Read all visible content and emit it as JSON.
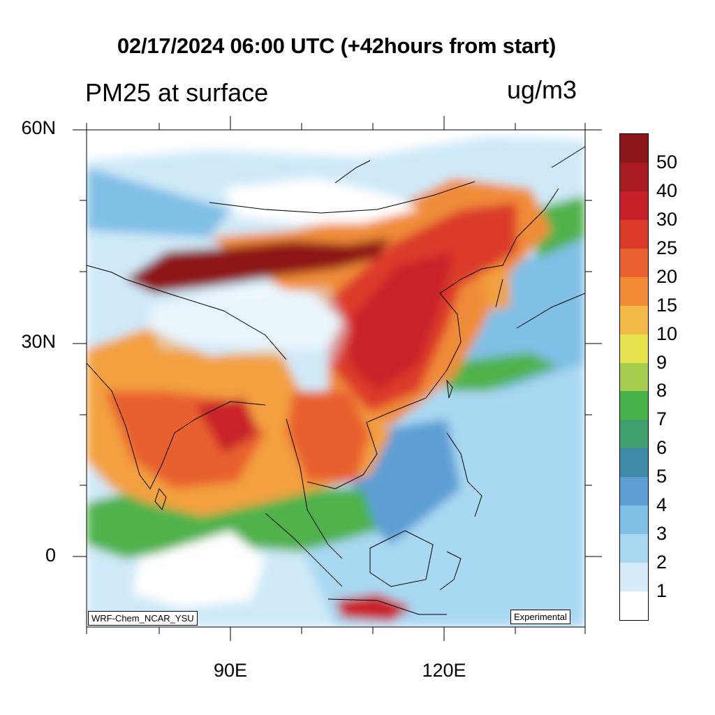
{
  "title": "02/17/2024 06:00 UTC (+42hours from start)",
  "left_subtitle": "PM25 at surface",
  "right_subtitle": "ug/m3",
  "lat_labels": [
    "60N",
    "30N",
    "0"
  ],
  "lon_labels": [
    "90E",
    "120E"
  ],
  "credit_left": "WRF-Chem_NCAR_YSU",
  "credit_right": "Experimental",
  "colorbar": {
    "levels": [
      "1",
      "2",
      "3",
      "4",
      "5",
      "6",
      "7",
      "8",
      "9",
      "10",
      "15",
      "20",
      "25",
      "30",
      "40",
      "50"
    ],
    "colors": [
      "#ffffff",
      "#d6ecfa",
      "#a9d8f2",
      "#80bfe6",
      "#5c9ed4",
      "#3f8aa9",
      "#3f9f6e",
      "#47b34a",
      "#a6cc4d",
      "#e7e34f",
      "#f3b945",
      "#f28a36",
      "#e8612f",
      "#dc3b2c",
      "#c9212a",
      "#a81b20",
      "#8d1619"
    ]
  },
  "colors": {
    "very_high": "#8d1619",
    "high": "#c9212a",
    "elevated": "#e8612f",
    "moderate": "#f3a040",
    "low_mod": "#4fb24c",
    "low": "#5c9ed4",
    "clean": "#a9d8f2",
    "very_clean": "#d6ecfa"
  }
}
